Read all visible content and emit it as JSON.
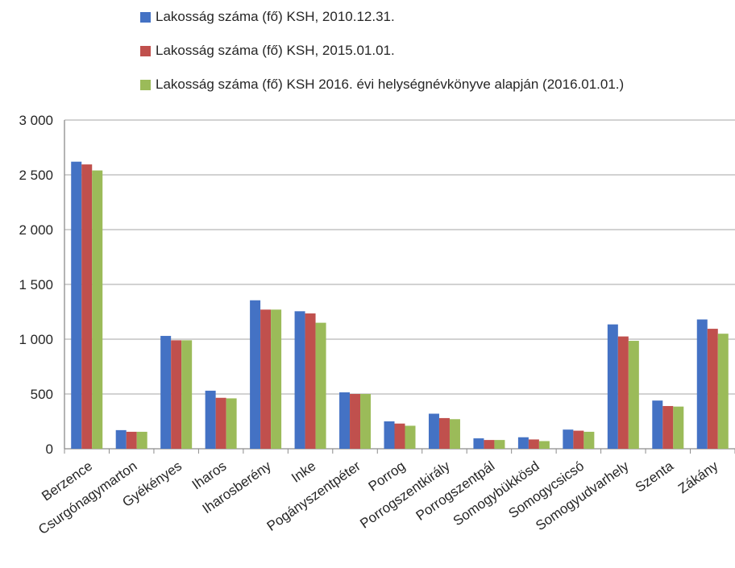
{
  "chart_data": {
    "type": "bar",
    "categories": [
      "Berzence",
      "Csurgónagymarton",
      "Gyékényes",
      "Iharos",
      "Iharosberény",
      "Inke",
      "Pogányszentpéter",
      "Porrog",
      "Porrogszentkirály",
      "Porrogszentpál",
      "Somogybükkösd",
      "Somogycsicsó",
      "Somogyudvarhely",
      "Szenta",
      "Zákány"
    ],
    "series": [
      {
        "name": "Lakosság száma (fő) KSH, 2010.12.31.",
        "color": "#4472C4",
        "values": [
          2620,
          170,
          1030,
          530,
          1355,
          1255,
          515,
          250,
          320,
          95,
          105,
          175,
          1135,
          440,
          1180
        ]
      },
      {
        "name": "Lakosság száma (fő) KSH, 2015.01.01.",
        "color": "#C0504D",
        "values": [
          2595,
          155,
          990,
          465,
          1270,
          1235,
          500,
          230,
          280,
          80,
          85,
          165,
          1025,
          390,
          1095
        ]
      },
      {
        "name": "Lakosság száma (fő) KSH 2016. évi helységnévkönyve alapján (2016.01.01.)",
        "color": "#9BBB59",
        "values": [
          2540,
          155,
          990,
          460,
          1270,
          1150,
          500,
          210,
          270,
          80,
          70,
          155,
          985,
          385,
          1050
        ]
      }
    ],
    "y_ticks": [
      0,
      500,
      1000,
      1500,
      2000,
      2500,
      3000
    ],
    "y_tick_labels": [
      "0",
      "500",
      "1 000",
      "1 500",
      "2 000",
      "2 500",
      "3 000"
    ],
    "ylim": [
      0,
      3000
    ],
    "grid": true,
    "legend_position": "top"
  }
}
